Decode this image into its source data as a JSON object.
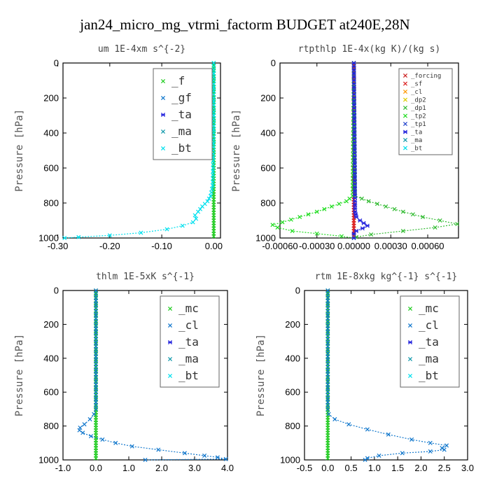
{
  "figure_title": "jan24_micro_mg_vtrmi_factorm  BUDGET at240E,28N",
  "chart_data": [
    {
      "type": "line",
      "title": "um  1E-4xm s^{-2}",
      "ylabel": "Pressure [hPa]",
      "xlim": [
        -0.29,
        0.013
      ],
      "ylim": [
        1000,
        0
      ],
      "xticks": [
        "-0.30",
        "-0.20",
        "-0.10",
        "0.00"
      ],
      "xtick_values": [
        -0.3,
        -0.2,
        -0.1,
        0.0
      ],
      "yticks": [
        "0",
        "200",
        "400",
        "600",
        "800",
        "1000"
      ],
      "ytick_values": [
        0,
        200,
        400,
        600,
        800,
        1000
      ],
      "legend_size": "big",
      "series": [
        {
          "name": "_f",
          "color": "#22cc22",
          "p": [
            0,
            1000
          ],
          "v": [
            0,
            0
          ]
        },
        {
          "name": "_gf",
          "color": "#1177cc",
          "p": [],
          "v": []
        },
        {
          "name": "_ta",
          "color": "#2222dd",
          "p": [],
          "v": []
        },
        {
          "name": "_ma",
          "color": "#1199aa",
          "p": [],
          "v": []
        },
        {
          "name": "_bt",
          "color": "#00e0ee",
          "p": [
            0,
            400,
            700,
            760,
            790,
            820,
            850,
            870,
            890,
            910,
            930,
            950,
            970,
            985,
            995,
            1000
          ],
          "v": [
            0,
            0,
            -0.002,
            -0.006,
            -0.012,
            -0.022,
            -0.03,
            -0.036,
            -0.034,
            -0.04,
            -0.06,
            -0.09,
            -0.14,
            -0.2,
            -0.26,
            -0.287
          ]
        }
      ]
    },
    {
      "type": "line",
      "title": "rtpthlp  1E-4x(kg K)/(kg s)",
      "ylabel": "Pressure [hPa]",
      "xlim": [
        -0.0006,
        0.00085
      ],
      "ylim": [
        1000,
        0
      ],
      "xticks": [
        "-0.00060",
        "-0.00030",
        "0.00000",
        "0.00030",
        "0.00060"
      ],
      "xtick_values": [
        -0.0006,
        -0.0003,
        0.0,
        0.0003,
        0.0006
      ],
      "yticks": [
        "0",
        "200",
        "400",
        "600",
        "800",
        "1000"
      ],
      "ytick_values": [
        0,
        200,
        400,
        600,
        800,
        1000
      ],
      "legend_size": "small",
      "series": [
        {
          "name": "_forcing",
          "color": "#cc2222",
          "p": [
            0,
            1000
          ],
          "v": [
            0,
            0
          ]
        },
        {
          "name": "_sf",
          "color": "#dd2222",
          "p": [
            0,
            1000
          ],
          "v": [
            0,
            0
          ]
        },
        {
          "name": "_cl",
          "color": "#ff9900",
          "p": [],
          "v": []
        },
        {
          "name": "_dp2",
          "color": "#ddcc00",
          "p": [],
          "v": []
        },
        {
          "name": "_dp1",
          "color": "#33bb33",
          "p": [
            0,
            760,
            790,
            820,
            850,
            880,
            900,
            920,
            940,
            960,
            980,
            995,
            1000
          ],
          "v": [
            0,
            1e-05,
            0.00012,
            0.00026,
            0.0004,
            0.00056,
            0.0007,
            0.00084,
            0.00066,
            0.0004,
            0.00014,
            2e-05,
            0
          ]
        },
        {
          "name": "_tp2",
          "color": "#22dd22",
          "p": [
            0,
            760,
            790,
            820,
            850,
            880,
            910,
            925,
            940,
            960,
            975,
            990,
            1000
          ],
          "v": [
            0,
            -1e-05,
            -6e-05,
            -0.00018,
            -0.0003,
            -0.00044,
            -0.00058,
            -0.00066,
            -0.00062,
            -0.0005,
            -0.0003,
            -0.0001,
            0
          ]
        },
        {
          "name": "_tp1",
          "color": "#2244cc",
          "p": [],
          "v": []
        },
        {
          "name": "_ta",
          "color": "#2222dd",
          "p": [
            0,
            850,
            880,
            900,
            915,
            930,
            945,
            960,
            975,
            1000
          ],
          "v": [
            0,
            1e-05,
            2e-05,
            5e-05,
            8e-05,
            0.00011,
            7e-05,
            2e-05,
            0,
            0
          ]
        },
        {
          "name": "_ma",
          "color": "#1199aa",
          "p": [],
          "v": []
        },
        {
          "name": "_bt",
          "color": "#00e0ee",
          "p": [],
          "v": []
        }
      ]
    },
    {
      "type": "line",
      "title": "thlm  1E-5xK s^{-1}",
      "ylabel": "Pressure [hPa]",
      "xlim": [
        -1.0,
        4.0
      ],
      "ylim": [
        1000,
        0
      ],
      "xticks": [
        "-1.0",
        "0.0",
        "1.0",
        "2.0",
        "3.0",
        "4.0"
      ],
      "xtick_values": [
        -1,
        0,
        1,
        2,
        3,
        4
      ],
      "yticks": [
        "0",
        "200",
        "400",
        "600",
        "800",
        "1000"
      ],
      "ytick_values": [
        0,
        200,
        400,
        600,
        800,
        1000
      ],
      "legend_size": "big",
      "series": [
        {
          "name": "_mc",
          "color": "#22cc22",
          "p": [
            0,
            1000
          ],
          "v": [
            0,
            0
          ]
        },
        {
          "name": "_cl",
          "color": "#1177cc",
          "p": [
            0,
            700,
            730,
            760,
            790,
            810,
            825,
            840,
            860,
            880,
            900,
            920,
            940,
            960,
            975,
            985,
            995,
            1000
          ],
          "v": [
            0,
            0,
            -0.06,
            -0.18,
            -0.35,
            -0.48,
            -0.5,
            -0.4,
            -0.15,
            0.2,
            0.6,
            1.1,
            1.9,
            2.7,
            3.3,
            3.7,
            3.95,
            1.5
          ]
        },
        {
          "name": "_ta",
          "color": "#2222dd",
          "p": [],
          "v": []
        },
        {
          "name": "_ma",
          "color": "#1199aa",
          "p": [],
          "v": []
        },
        {
          "name": "_bt",
          "color": "#00e0ee",
          "p": [],
          "v": []
        }
      ]
    },
    {
      "type": "line",
      "title": "rtm  1E-8xkg kg^{-1} s^{-1}",
      "ylabel": "Pressure [hPa]",
      "xlim": [
        -0.5,
        3.0
      ],
      "ylim": [
        1000,
        0
      ],
      "xticks": [
        "-0.5",
        "0.0",
        "0.5",
        "1.0",
        "1.5",
        "2.0",
        "2.5",
        "3.0"
      ],
      "xtick_values": [
        -0.5,
        0,
        0.5,
        1.0,
        1.5,
        2.0,
        2.5,
        3.0
      ],
      "yticks": [
        "0",
        "200",
        "400",
        "600",
        "800",
        "1000"
      ],
      "ytick_values": [
        0,
        200,
        400,
        600,
        800,
        1000
      ],
      "legend_size": "big",
      "series": [
        {
          "name": "_mc",
          "color": "#22cc22",
          "p": [
            0,
            1000
          ],
          "v": [
            0,
            0
          ]
        },
        {
          "name": "_cl",
          "color": "#1177cc",
          "p": [
            0,
            700,
            730,
            760,
            790,
            820,
            850,
            880,
            900,
            915,
            930,
            940,
            950,
            960,
            975,
            990,
            1000
          ],
          "v": [
            0,
            0,
            0.02,
            0.15,
            0.45,
            0.85,
            1.3,
            1.8,
            2.2,
            2.55,
            2.45,
            2.5,
            2.2,
            1.6,
            1.1,
            0.85,
            0.8
          ]
        },
        {
          "name": "_ta",
          "color": "#2222dd",
          "p": [],
          "v": []
        },
        {
          "name": "_ma",
          "color": "#1199aa",
          "p": [],
          "v": []
        },
        {
          "name": "_bt",
          "color": "#00e0ee",
          "p": [],
          "v": []
        }
      ]
    }
  ]
}
